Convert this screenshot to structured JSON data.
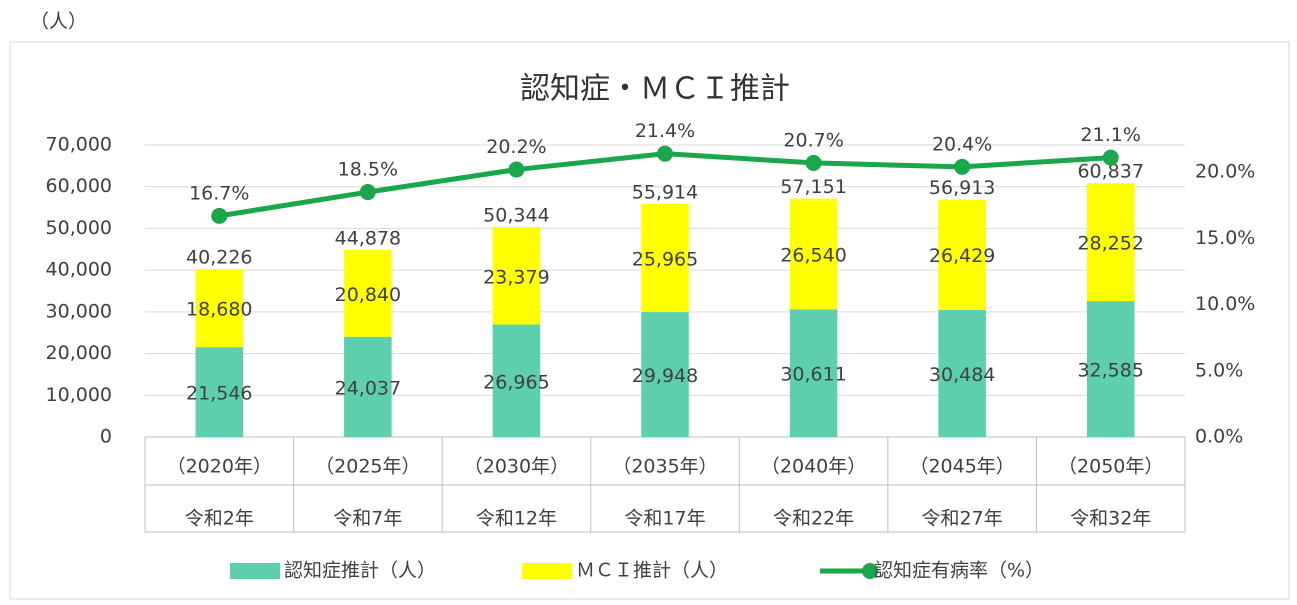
{
  "chart_data": {
    "type": "stacked-bar-line",
    "title": "認知症・ＭＣＩ推計",
    "unit_label": "（人）",
    "categories": [
      [
        "（2020年）",
        "令和2年"
      ],
      [
        "（2025年）",
        "令和7年"
      ],
      [
        "（2030年）",
        "令和12年"
      ],
      [
        "（2035年）",
        "令和17年"
      ],
      [
        "（2040年）",
        "令和22年"
      ],
      [
        "（2045年）",
        "令和27年"
      ],
      [
        "（2050年）",
        "令和32年"
      ]
    ],
    "series": [
      {
        "name": "認知症推計（人）",
        "color": "#5dcfae",
        "values": [
          21546,
          24037,
          26965,
          29948,
          30611,
          30484,
          32585
        ],
        "value_labels": [
          "21,546",
          "24,037",
          "26,965",
          "29,948",
          "30,611",
          "30,484",
          "32,585"
        ]
      },
      {
        "name": "ＭＣＩ推計（人）",
        "color": "#ffff00",
        "values": [
          18680,
          20840,
          23379,
          25965,
          26540,
          26429,
          28252
        ],
        "value_labels": [
          "18,680",
          "20,840",
          "23,379",
          "25,965",
          "26,540",
          "26,429",
          "28,252"
        ]
      },
      {
        "name": "認知症有病率（%）",
        "color": "#1aa64a",
        "axis": "y2",
        "values": [
          16.7,
          18.5,
          20.2,
          21.4,
          20.7,
          20.4,
          21.1
        ],
        "value_labels": [
          "16.7%",
          "18.5%",
          "20.2%",
          "21.4%",
          "20.7%",
          "20.4%",
          "21.1%"
        ]
      }
    ],
    "total_labels": [
      "40,226",
      "44,878",
      "50,344",
      "55,914",
      "57,151",
      "56,913",
      "60,837"
    ],
    "ylim": [
      0,
      70000
    ],
    "yticks": [
      0,
      {
        "value": 10000,
        "label": "10,000"
      },
      {
        "value": 20000,
        "label": "20,000"
      },
      {
        "value": 30000,
        "label": "30,000"
      },
      {
        "value": 40000,
        "label": "40,000"
      },
      {
        "value": 50000,
        "label": "50,000"
      },
      {
        "value": 60000,
        "label": "60,000"
      },
      {
        "value": 70000,
        "label": "70,000"
      }
    ],
    "y2lim": [
      0,
      25
    ],
    "y2ticks": [
      {
        "value": 0,
        "label": "0.0%"
      },
      {
        "value": 5,
        "label": "5.0%"
      },
      {
        "value": 10,
        "label": "10.0%"
      },
      {
        "value": 15,
        "label": "15.0%"
      },
      {
        "value": 20,
        "label": "20.0%"
      }
    ],
    "grid": true,
    "legend": "bottom"
  }
}
